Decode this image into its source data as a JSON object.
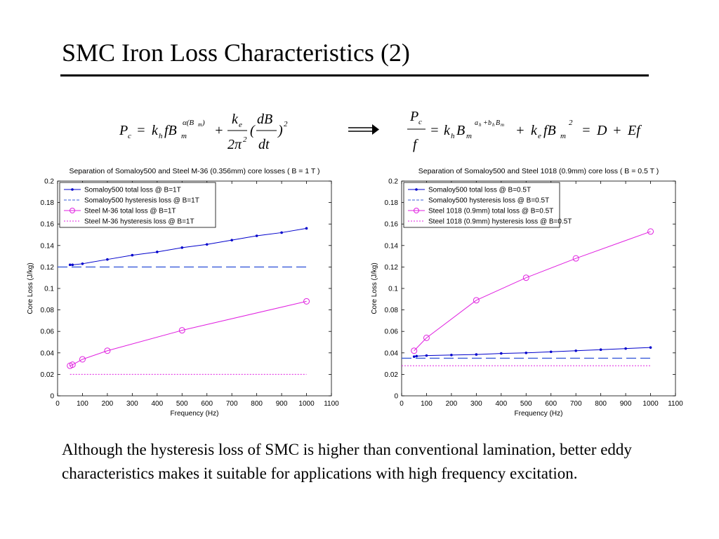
{
  "title": "SMC Iron Loss Characteristics (2)",
  "body_text": "Although the hysteresis loss of SMC is higher than conventional lamination, better eddy characteristics makes it suitable for applications with high frequency excitation.",
  "colors": {
    "blue": "#0000cc",
    "blue_dash": "#3a5bd9",
    "magenta": "#e020e0"
  },
  "chart_data": [
    {
      "type": "line",
      "title": "Separation of Somaloy500 and Steel M-36 (0.356mm) core losses ( B = 1 T )",
      "xlabel": "Frequency (Hz)",
      "ylabel": "Core Loss (J/kg)",
      "xlim": [
        0,
        1100
      ],
      "ylim": [
        0,
        0.2
      ],
      "xticks": [
        0,
        100,
        200,
        300,
        400,
        500,
        600,
        700,
        800,
        900,
        1000,
        1100
      ],
      "yticks": [
        0,
        0.02,
        0.04,
        0.06,
        0.08,
        0.1,
        0.12,
        0.14,
        0.16,
        0.18,
        0.2
      ],
      "ytick_labels": [
        "0",
        "0.02",
        "0.04",
        "0.06",
        "0.08",
        "0.1",
        "0.12",
        "0.14",
        "0.16",
        "0.18",
        "0.2"
      ],
      "legend_position": "top-left",
      "series": [
        {
          "name": "Somaloy500 total loss @ B=1T",
          "color": "#0000cc",
          "style": "solid",
          "marker": "dot",
          "x": [
            50,
            60,
            100,
            200,
            300,
            400,
            500,
            600,
            700,
            800,
            900,
            1000
          ],
          "y": [
            0.122,
            0.122,
            0.123,
            0.127,
            0.131,
            0.134,
            0.138,
            0.141,
            0.145,
            0.149,
            0.152,
            0.156
          ]
        },
        {
          "name": "Somaloy500 hysteresis loss @ B=1T",
          "color": "#3a5bd9",
          "style": "dashed",
          "marker": "none",
          "x": [
            0,
            1000
          ],
          "y": [
            0.12,
            0.12
          ]
        },
        {
          "name": "Steel M-36 total loss @ B=1T",
          "color": "#e020e0",
          "style": "solid",
          "marker": "circle",
          "x": [
            50,
            60,
            100,
            200,
            500,
            1000
          ],
          "y": [
            0.028,
            0.029,
            0.034,
            0.042,
            0.061,
            0.088
          ]
        },
        {
          "name": "Steel M-36 hysteresis loss @ B=1T",
          "color": "#e020e0",
          "style": "dotted",
          "marker": "none",
          "x": [
            50,
            1000
          ],
          "y": [
            0.02,
            0.02
          ]
        }
      ]
    },
    {
      "type": "line",
      "title": "Separation of Somaloy500 and Steel 1018 (0.9mm) core loss ( B = 0.5 T )",
      "xlabel": "Frequency (Hz)",
      "ylabel": "Core Loss (J/kg)",
      "xlim": [
        0,
        1100
      ],
      "ylim": [
        0,
        0.2
      ],
      "xticks": [
        0,
        100,
        200,
        300,
        400,
        500,
        600,
        700,
        800,
        900,
        1000,
        1100
      ],
      "yticks": [
        0,
        0.02,
        0.04,
        0.06,
        0.08,
        0.1,
        0.12,
        0.14,
        0.16,
        0.18,
        0.2
      ],
      "ytick_labels": [
        "0",
        "0.02",
        "0.04",
        "0.06",
        "0.08",
        "0.1",
        "0.12",
        "0.14",
        "0.16",
        "0.18",
        "0.2"
      ],
      "legend_position": "top-left",
      "series": [
        {
          "name": "Somaloy500 total loss @ B=0.5T",
          "color": "#0000cc",
          "style": "solid",
          "marker": "dot",
          "x": [
            50,
            60,
            100,
            200,
            300,
            400,
            500,
            600,
            700,
            800,
            900,
            1000
          ],
          "y": [
            0.0365,
            0.037,
            0.0375,
            0.038,
            0.0385,
            0.0395,
            0.04,
            0.041,
            0.042,
            0.043,
            0.044,
            0.045
          ]
        },
        {
          "name": "Somaloy500 hysteresis loss @ B=0.5T",
          "color": "#3a5bd9",
          "style": "dashed",
          "marker": "none",
          "x": [
            0,
            1000
          ],
          "y": [
            0.035,
            0.035
          ]
        },
        {
          "name": "Steel 1018 (0.9mm) total loss @ B=0.5T",
          "color": "#e020e0",
          "style": "solid",
          "marker": "circle",
          "x": [
            50,
            100,
            300,
            500,
            700,
            1000
          ],
          "y": [
            0.042,
            0.054,
            0.089,
            0.11,
            0.128,
            0.153
          ]
        },
        {
          "name": "Steel 1018 (0.9mm) hysteresis loss @ B=0.5T",
          "color": "#e020e0",
          "style": "dotted",
          "marker": "none",
          "x": [
            0,
            1000
          ],
          "y": [
            0.028,
            0.028
          ]
        }
      ]
    }
  ]
}
